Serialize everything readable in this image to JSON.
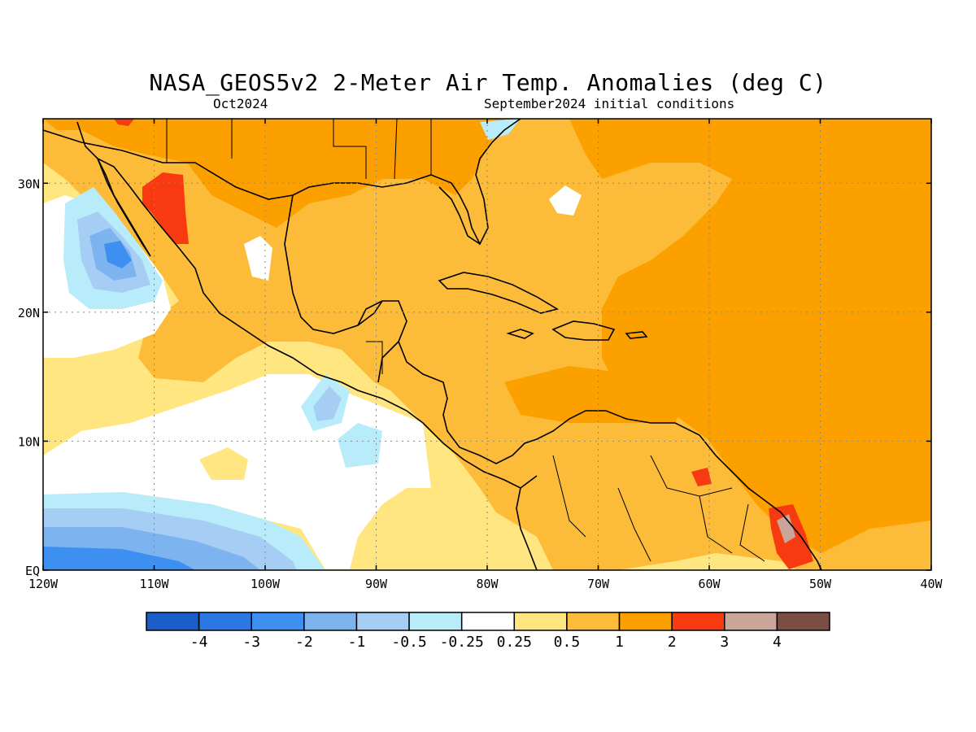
{
  "title": "NASA_GEOS5v2 2-Meter Air Temp. Anomalies (deg C)",
  "subtitle_left": "Oct2024",
  "subtitle_right": "September2024 initial conditions",
  "map": {
    "lon_range": [
      -120,
      -40
    ],
    "lat_range": [
      0,
      35
    ],
    "lon_ticks": [
      {
        "lon": -120,
        "label": "120W"
      },
      {
        "lon": -110,
        "label": "110W"
      },
      {
        "lon": -100,
        "label": "100W"
      },
      {
        "lon": -90,
        "label": "90W"
      },
      {
        "lon": -80,
        "label": "80W"
      },
      {
        "lon": -70,
        "label": "70W"
      },
      {
        "lon": -60,
        "label": "60W"
      },
      {
        "lon": -50,
        "label": "50W"
      },
      {
        "lon": -40,
        "label": "40W"
      }
    ],
    "lat_ticks": [
      {
        "lat": 0,
        "label": "EQ"
      },
      {
        "lat": 10,
        "label": "10N"
      },
      {
        "lat": 20,
        "label": "20N"
      },
      {
        "lat": 30,
        "label": "30N"
      }
    ],
    "grid": "dotted"
  },
  "colorbar": {
    "colors": [
      "#1a5fc8",
      "#2b78e4",
      "#3d8ff0",
      "#7db4f0",
      "#a6cdf4",
      "#b8ecfa",
      "#ffffff",
      "#ffe680",
      "#fdbb3a",
      "#fca000",
      "#f83a10",
      "#c9a59a",
      "#7a4e44"
    ],
    "labels": [
      "-4",
      "-3",
      "-2",
      "-1",
      "-0.5",
      "-0.25",
      "0.25",
      "0.5",
      "1",
      "2",
      "3",
      "4"
    ]
  }
}
